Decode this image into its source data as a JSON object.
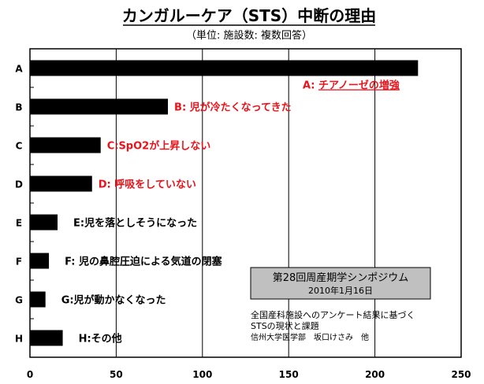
{
  "chart_data": {
    "type": "bar",
    "orientation": "horizontal",
    "title": "カンガルーケア（STS）中断の理由",
    "subtitle": "（単位: 施設数: 複数回答）",
    "categories": [
      "A",
      "B",
      "C",
      "D",
      "E",
      "F",
      "G",
      "H"
    ],
    "values": [
      225,
      80,
      41,
      36,
      16,
      11,
      9,
      19
    ],
    "bar_labels": [
      {
        "prefix": "A: ",
        "text": "チアノーゼの増強"
      },
      {
        "prefix": "",
        "text": "B: 児が冷たくなってきた"
      },
      {
        "prefix": "",
        "text": "C:SpO2が上昇しない"
      },
      {
        "prefix": "",
        "text": "D: 呼吸をしていない"
      },
      {
        "prefix": "",
        "text": "E:児を落としそうになった"
      },
      {
        "prefix": "",
        "text": "F: 児の鼻腔圧迫による気道の閉塞"
      },
      {
        "prefix": "",
        "text": "G:児が動かなくなった"
      },
      {
        "prefix": "",
        "text": "H:その他"
      }
    ],
    "bar_label_colors": [
      "#e8141b",
      "#e8141b",
      "#e8141b",
      "#e8141b",
      "#000000",
      "#000000",
      "#000000",
      "#000000"
    ],
    "xlim": [
      0,
      250
    ],
    "xticks": [
      0,
      50,
      100,
      150,
      200,
      250
    ],
    "grid": true,
    "bar_color": "#000000",
    "source": {
      "title": "第28回周産期学シンポジウム",
      "date": "2010年1月16日",
      "note_line1": "全国産科施設へのアンケート結果に基づく",
      "note_line2": "STSの現状と課題",
      "note_line3": "信州大学医学部　坂口けさみ　他"
    }
  }
}
